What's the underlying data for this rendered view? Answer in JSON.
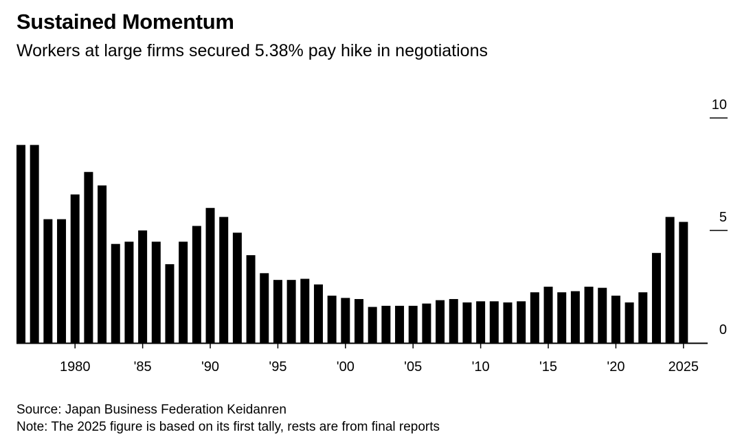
{
  "title": "Sustained Momentum",
  "subtitle": "Workers at large firms secured 5.38% pay hike in negotiations",
  "source": "Source: Japan Business Federation Keidanren",
  "note": "Note: The 2025 figure is based on its first tally, rests are from final reports",
  "colors": {
    "bar": "#000000",
    "axis": "#000000",
    "background": "#ffffff"
  },
  "chart_data": {
    "type": "bar",
    "x": [
      1976,
      1977,
      1978,
      1979,
      1980,
      1981,
      1982,
      1983,
      1984,
      1985,
      1986,
      1987,
      1988,
      1989,
      1990,
      1991,
      1992,
      1993,
      1994,
      1995,
      1996,
      1997,
      1998,
      1999,
      2000,
      2001,
      2002,
      2003,
      2004,
      2005,
      2006,
      2007,
      2008,
      2009,
      2010,
      2011,
      2012,
      2013,
      2014,
      2015,
      2016,
      2017,
      2018,
      2019,
      2020,
      2021,
      2022,
      2023,
      2024,
      2025
    ],
    "values": [
      8.8,
      8.8,
      5.5,
      5.5,
      6.6,
      7.6,
      7.0,
      4.4,
      4.5,
      5.0,
      4.5,
      3.5,
      4.5,
      5.2,
      6.0,
      5.6,
      4.9,
      3.9,
      3.1,
      2.8,
      2.8,
      2.85,
      2.6,
      2.1,
      2.0,
      1.95,
      1.6,
      1.65,
      1.65,
      1.65,
      1.75,
      1.9,
      1.95,
      1.8,
      1.85,
      1.85,
      1.8,
      1.85,
      2.25,
      2.5,
      2.25,
      2.3,
      2.5,
      2.45,
      2.1,
      1.8,
      2.25,
      4.0,
      5.6,
      5.38
    ],
    "x_tick_labels": [
      {
        "year": 1980,
        "label": "1980"
      },
      {
        "year": 1985,
        "label": "'85"
      },
      {
        "year": 1990,
        "label": "'90"
      },
      {
        "year": 1995,
        "label": "'95"
      },
      {
        "year": 2000,
        "label": "'00"
      },
      {
        "year": 2005,
        "label": "'05"
      },
      {
        "year": 2010,
        "label": "'10"
      },
      {
        "year": 2015,
        "label": "'15"
      },
      {
        "year": 2020,
        "label": "'20"
      },
      {
        "year": 2025,
        "label": "2025"
      }
    ],
    "y_ticks": [
      {
        "value": 0,
        "label": "0"
      },
      {
        "value": 5,
        "label": "5"
      },
      {
        "value": 10,
        "label": "10"
      }
    ],
    "ylim": [
      0,
      10
    ],
    "y_axis_side": "right",
    "grid": false,
    "legend": "none"
  }
}
